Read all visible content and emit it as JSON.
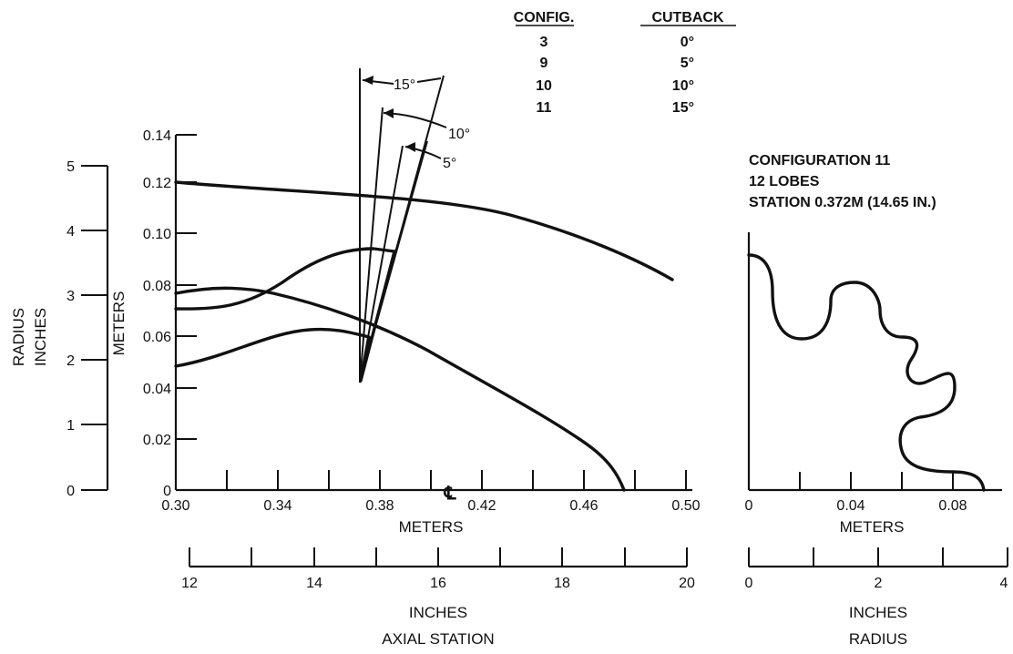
{
  "legend": {
    "col_config": "CONFIG.",
    "col_cutback": "CUTBACK",
    "rows": [
      {
        "config": "3",
        "cutback": "0°"
      },
      {
        "config": "9",
        "cutback": "5°"
      },
      {
        "config": "10",
        "cutback": "10°"
      },
      {
        "config": "11",
        "cutback": "15°"
      }
    ]
  },
  "angle_labels": [
    "15°",
    "10°",
    "5°"
  ],
  "main_plot": {
    "y_axis_label": "METERS",
    "y_ticks": [
      "0.14",
      "0.12",
      "0.10",
      "0.08",
      "0.06",
      "0.04",
      "0.02",
      "0"
    ],
    "x_axis_label": "METERS",
    "x_ticks": [
      "0.30",
      "0.34",
      "0.38",
      "0.42",
      "0.46",
      "0.50"
    ],
    "centerline_symbol": "℄"
  },
  "radius_inches_axis": {
    "label_line1": "RADIUS",
    "label_line2": "INCHES",
    "ticks": [
      "5",
      "4",
      "3",
      "2",
      "1",
      "0"
    ]
  },
  "axial_inches_axis": {
    "ticks": [
      "12",
      "14",
      "16",
      "18",
      "20"
    ],
    "label_line1": "INCHES",
    "label_line2": "AXIAL STATION"
  },
  "cross_section": {
    "title_line1": "CONFIGURATION 11",
    "title_line2": "12 LOBES",
    "title_line3": "STATION 0.372M (14.65 IN.)",
    "x_ticks_meters": [
      "0",
      "0.04",
      "0.08"
    ],
    "x_label_meters": "METERS",
    "x_ticks_inches": [
      "0",
      "2",
      "4"
    ],
    "x_label_inches_line1": "INCHES",
    "x_label_inches_line2": "RADIUS"
  }
}
